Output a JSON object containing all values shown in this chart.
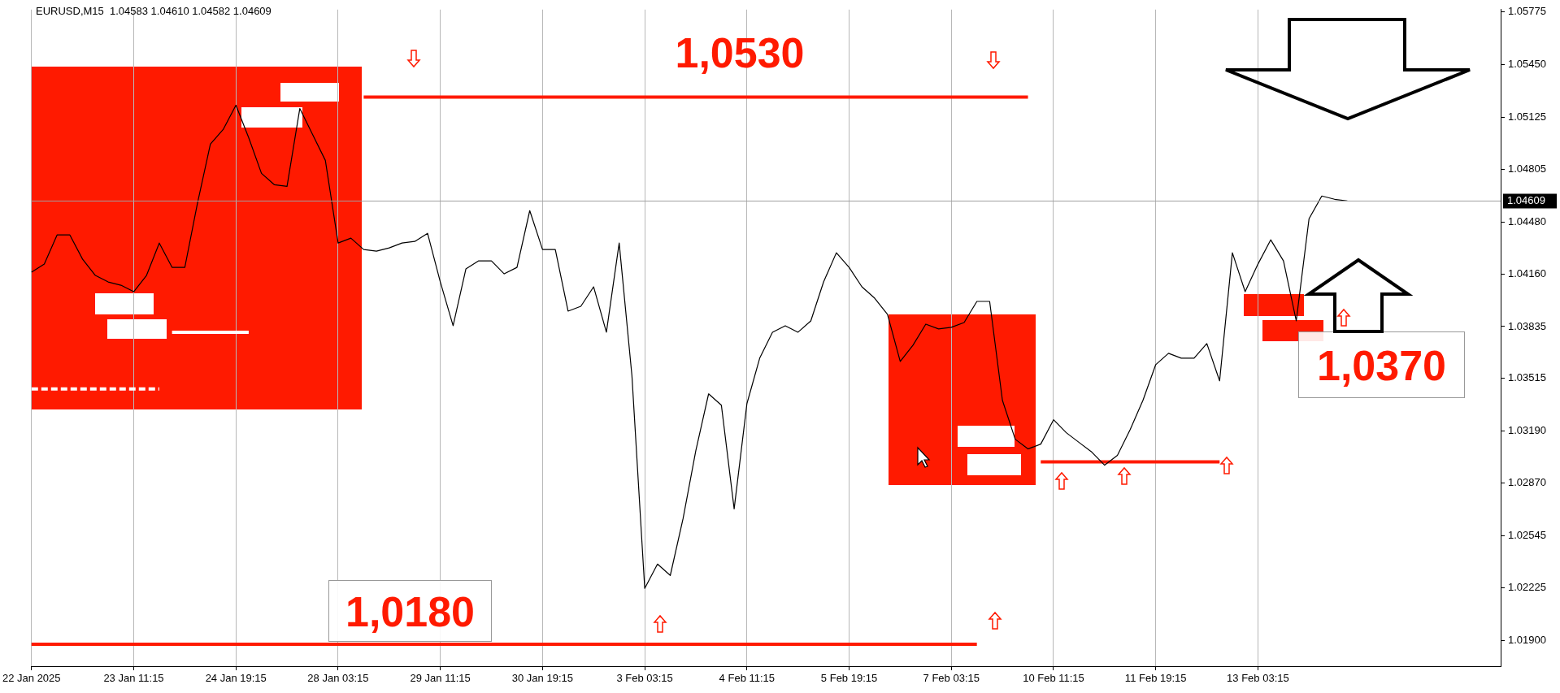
{
  "chart_data": {
    "type": "line",
    "title": "EURUSD,M15  1.04583 1.04610 1.04582 1.04609",
    "categories": [
      "22 Jan 2025",
      null,
      null,
      null,
      null,
      null,
      null,
      null,
      "23 Jan 11:15",
      null,
      null,
      null,
      null,
      null,
      null,
      null,
      "24 Jan 19:15",
      null,
      null,
      null,
      null,
      null,
      null,
      null,
      "28 Jan 03:15",
      null,
      null,
      null,
      null,
      null,
      null,
      null,
      "29 Jan 11:15",
      null,
      null,
      null,
      null,
      null,
      null,
      null,
      "30 Jan 19:15",
      null,
      null,
      null,
      null,
      null,
      null,
      null,
      "3 Feb 03:15",
      null,
      null,
      null,
      null,
      null,
      null,
      null,
      "4 Feb 11:15",
      null,
      null,
      null,
      null,
      null,
      null,
      null,
      "5 Feb 19:15",
      null,
      null,
      null,
      null,
      null,
      null,
      null,
      "7 Feb 03:15",
      null,
      null,
      null,
      null,
      null,
      null,
      null,
      "10 Feb 11:15",
      null,
      null,
      null,
      null,
      null,
      null,
      null,
      "11 Feb 19:15",
      null,
      null,
      null,
      null,
      null,
      null,
      null,
      "13 Feb 03:15",
      null,
      null,
      null,
      null,
      null,
      null,
      null,
      null,
      null,
      null,
      null,
      null,
      null,
      null,
      null,
      null,
      null,
      null,
      null
    ],
    "ylim": [
      1.0174,
      1.0579
    ],
    "yticks": [
      1.05775,
      {
        "value": 1.0545,
        "label": "1.05450"
      },
      1.05125,
      1.04805,
      {
        "value": 1.0448,
        "label": "1.04480"
      },
      {
        "value": 1.0416,
        "label": "1.04160"
      },
      1.03835,
      1.03515,
      {
        "value": 1.0319,
        "label": "1.03190"
      },
      {
        "value": 1.0287,
        "label": "1.02870"
      },
      1.02545,
      1.02225,
      {
        "value": 1.019,
        "label": "1.01900"
      }
    ],
    "grid": "x",
    "series": [
      {
        "color": "#ffffff",
        "values": [
          null,
          null,
          null,
          null,
          null,
          null,
          null,
          null,
          null,
          null,
          null,
          1.038,
          1.038,
          1.038,
          1.038,
          1.038,
          1.038,
          1.038,
          null,
          null,
          null,
          null,
          null,
          null,
          null,
          null,
          null,
          null,
          null,
          null,
          null,
          null,
          null,
          null,
          null,
          null,
          null,
          null,
          null,
          null,
          null,
          null,
          null,
          null,
          null,
          null,
          null,
          null,
          null,
          null,
          null,
          null,
          null,
          null,
          null,
          null,
          null,
          null,
          null,
          null,
          null,
          null,
          null,
          null,
          null,
          null,
          null,
          null,
          null,
          null,
          null,
          null,
          null,
          null,
          null,
          null,
          null,
          null,
          null,
          null,
          null,
          null,
          null,
          null,
          null,
          null,
          null,
          null,
          null,
          null,
          null,
          null,
          null,
          null,
          null,
          null,
          null,
          null,
          null,
          null,
          null,
          null,
          null,
          null,
          null,
          null,
          null,
          null,
          null,
          null,
          null,
          null,
          null,
          null,
          null,
          null
        ]
      },
      {
        "color": "#ffffff",
        "line_style": "dashed",
        "values": [
          1.0345,
          1.0345,
          1.0345,
          1.0345,
          1.0345,
          1.0345,
          1.0345,
          1.0345,
          1.0345,
          1.0345,
          1.0345,
          null,
          null,
          null,
          null,
          null,
          null,
          null,
          null,
          null,
          null,
          null,
          null,
          null,
          null,
          null,
          null,
          null,
          null,
          null,
          null,
          null,
          null,
          null,
          null,
          null,
          null,
          null,
          null,
          null,
          null,
          null,
          null,
          null,
          null,
          null,
          null,
          null,
          null,
          null,
          null,
          null,
          null,
          null,
          null,
          null,
          null,
          null,
          null,
          null,
          null,
          null,
          null,
          null,
          null,
          null,
          null,
          null,
          null,
          null,
          null,
          null,
          null,
          null,
          null,
          null,
          null,
          null,
          null,
          null,
          null,
          null,
          null,
          null,
          null,
          null,
          null,
          null,
          null,
          null,
          null,
          null,
          null,
          null,
          null,
          null,
          null,
          null,
          null,
          null,
          null,
          null,
          null,
          null,
          null,
          null,
          null,
          null,
          null,
          null,
          null,
          null,
          null,
          null,
          null,
          null
        ]
      },
      {
        "color": "#ff1a00",
        "values": [
          null,
          null,
          null,
          null,
          null,
          null,
          null,
          null,
          null,
          null,
          null,
          null,
          null,
          null,
          null,
          null,
          null,
          null,
          null,
          null,
          null,
          null,
          null,
          null,
          null,
          null,
          1.0525,
          1.0525,
          1.0525,
          1.0525,
          1.0525,
          1.0525,
          1.0525,
          1.0525,
          1.0525,
          1.0525,
          1.0525,
          1.0525,
          1.0525,
          1.0525,
          1.0525,
          1.0525,
          1.0525,
          1.0525,
          1.0525,
          1.0525,
          1.0525,
          1.0525,
          1.0525,
          1.0525,
          1.0525,
          1.0525,
          1.0525,
          1.0525,
          1.0525,
          1.0525,
          1.0525,
          1.0525,
          1.0525,
          1.0525,
          1.0525,
          1.0525,
          1.0525,
          1.0525,
          1.0525,
          1.0525,
          1.0525,
          1.0525,
          1.0525,
          1.0525,
          1.0525,
          1.0525,
          1.0525,
          1.0525,
          1.0525,
          1.0525,
          1.0525,
          1.0525,
          1.0525,
          null,
          null,
          null,
          null,
          null,
          null,
          null,
          null,
          null,
          null,
          null,
          null,
          null,
          null,
          null,
          null,
          null,
          null,
          null,
          null,
          null,
          null,
          null,
          null,
          null,
          null,
          null,
          null,
          null,
          null,
          null,
          null,
          null,
          null,
          null,
          null,
          null
        ]
      },
      {
        "color": "#ff1a00",
        "values": [
          1.01875,
          1.01875,
          1.01875,
          1.01875,
          1.01875,
          1.01875,
          1.01875,
          1.01875,
          1.01875,
          1.01875,
          1.01875,
          1.01875,
          1.01875,
          1.01875,
          1.01875,
          1.01875,
          1.01875,
          1.01875,
          1.01875,
          1.01875,
          1.01875,
          1.01875,
          1.01875,
          1.01875,
          1.01875,
          1.01875,
          1.01875,
          1.01875,
          1.01875,
          1.01875,
          1.01875,
          1.01875,
          1.01875,
          1.01875,
          1.01875,
          1.01875,
          1.01875,
          1.01875,
          1.01875,
          1.01875,
          1.01875,
          1.01875,
          1.01875,
          1.01875,
          1.01875,
          1.01875,
          1.01875,
          1.01875,
          1.01875,
          1.01875,
          1.01875,
          1.01875,
          1.01875,
          1.01875,
          1.01875,
          1.01875,
          1.01875,
          1.01875,
          1.01875,
          1.01875,
          1.01875,
          1.01875,
          1.01875,
          1.01875,
          1.01875,
          1.01875,
          1.01875,
          1.01875,
          1.01875,
          1.01875,
          1.01875,
          1.01875,
          1.01875,
          1.01875,
          1.01875,
          null,
          null,
          null,
          null,
          null,
          null,
          null,
          null,
          null,
          null,
          null,
          null,
          null,
          null,
          null,
          null,
          null,
          null,
          null,
          null,
          null,
          null,
          null,
          null,
          null,
          null,
          null,
          null,
          null,
          null,
          null,
          null,
          null,
          null,
          null,
          null,
          null,
          null,
          null,
          null,
          null
        ]
      },
      {
        "color": "#ff1a00",
        "values": [
          null,
          null,
          null,
          null,
          null,
          null,
          null,
          null,
          null,
          null,
          null,
          null,
          null,
          null,
          null,
          null,
          null,
          null,
          null,
          null,
          null,
          null,
          null,
          null,
          null,
          null,
          null,
          null,
          null,
          null,
          null,
          null,
          null,
          null,
          null,
          null,
          null,
          null,
          null,
          null,
          null,
          null,
          null,
          null,
          null,
          null,
          null,
          null,
          null,
          null,
          null,
          null,
          null,
          null,
          null,
          null,
          null,
          null,
          null,
          null,
          null,
          null,
          null,
          null,
          null,
          null,
          null,
          null,
          null,
          null,
          null,
          null,
          null,
          null,
          null,
          null,
          null,
          null,
          null,
          1.03,
          1.03,
          1.03,
          1.03,
          1.03,
          1.03,
          1.03,
          1.03,
          1.03,
          1.03,
          1.03,
          1.03,
          1.03,
          1.03,
          1.03,
          null,
          null,
          null,
          null,
          null,
          null,
          null,
          null,
          null,
          null,
          null,
          null,
          null,
          null,
          null,
          null,
          null,
          null,
          null,
          null,
          null,
          null
        ]
      },
      {
        "color": "#000000",
        "values": [
          1.0417,
          1.0422,
          1.044,
          1.044,
          1.0425,
          1.0415,
          1.0411,
          1.0409,
          1.0405,
          1.0415,
          1.0435,
          1.042,
          1.042,
          1.046,
          1.0496,
          1.0505,
          1.052,
          1.05,
          1.0478,
          1.0471,
          1.047,
          1.0518,
          1.0502,
          1.0486,
          1.0435,
          1.0438,
          1.0431,
          1.043,
          1.0432,
          1.0435,
          1.0436,
          1.0441,
          1.0411,
          1.0384,
          1.0419,
          1.0424,
          1.0424,
          1.0416,
          1.042,
          1.0455,
          1.0431,
          1.0431,
          1.0393,
          1.0396,
          1.0408,
          1.038,
          1.0435,
          1.0353,
          1.0222,
          1.0237,
          1.023,
          1.0265,
          1.0307,
          1.0342,
          1.0335,
          1.0271,
          1.0336,
          1.0364,
          1.038,
          1.0384,
          1.038,
          1.0387,
          1.0411,
          1.0429,
          1.042,
          1.0408,
          1.0401,
          1.0391,
          1.0362,
          1.0372,
          1.0385,
          1.0382,
          1.0383,
          1.0386,
          1.0399,
          1.0399,
          1.0338,
          1.0314,
          1.0308,
          1.0311,
          1.0326,
          1.0318,
          1.0312,
          1.0306,
          1.0298,
          1.0304,
          1.032,
          1.0338,
          1.036,
          1.0367,
          1.0364,
          1.0364,
          1.0373,
          1.035,
          1.0429,
          1.0405,
          1.0422,
          1.0437,
          1.0424,
          1.0387,
          1.045,
          1.0464,
          1.0462,
          1.0461,
          null,
          null,
          null,
          null,
          null,
          null,
          null,
          null,
          null,
          null,
          null,
          null
        ]
      }
    ],
    "ref_lines": [
      {
        "axis": "y",
        "value": 1.04609,
        "label": "1.04609",
        "color": "#a0a0a0"
      }
    ],
    "annotations": [
      "1,0530",
      "1,0180",
      "1,0370"
    ]
  }
}
